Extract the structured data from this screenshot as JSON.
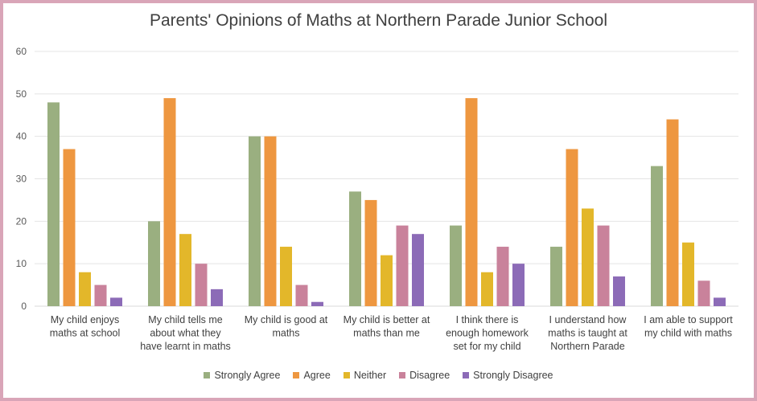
{
  "chart_data": {
    "type": "bar",
    "title": "Parents' Opinions of Maths at Northern Parade Junior School",
    "ylim": [
      0,
      60
    ],
    "yticks": [
      0,
      10,
      20,
      30,
      40,
      50,
      60
    ],
    "grid": true,
    "legend_position": "bottom",
    "categories": [
      [
        "My child enjoys",
        "maths at school"
      ],
      [
        "My child tells me",
        "about what they",
        "have learnt in maths"
      ],
      [
        "My child is good at",
        "maths"
      ],
      [
        "My child is better at",
        "maths than me"
      ],
      [
        "I think there is",
        "enough homework",
        "set for my child"
      ],
      [
        "I understand how",
        "maths is taught at",
        "Northern Parade"
      ],
      [
        "I am able to support",
        "my child with maths"
      ]
    ],
    "series": [
      {
        "name": "Strongly Agree",
        "color": "#9aaf80",
        "values": [
          48,
          20,
          40,
          27,
          19,
          14,
          33
        ]
      },
      {
        "name": "Agree",
        "color": "#ee9740",
        "values": [
          37,
          49,
          40,
          25,
          49,
          37,
          44
        ]
      },
      {
        "name": "Neither",
        "color": "#e3b72a",
        "values": [
          8,
          17,
          14,
          12,
          8,
          23,
          15
        ]
      },
      {
        "name": "Disagree",
        "color": "#c9829b",
        "values": [
          5,
          10,
          5,
          19,
          14,
          19,
          6
        ]
      },
      {
        "name": "Strongly Disagree",
        "color": "#8c6bb7",
        "values": [
          2,
          4,
          1,
          17,
          10,
          7,
          2
        ]
      }
    ]
  }
}
